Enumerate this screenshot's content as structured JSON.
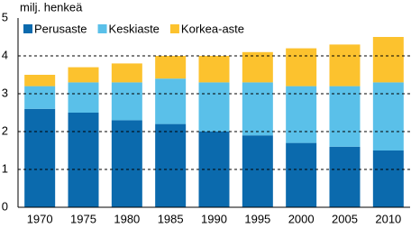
{
  "chart_data": {
    "type": "stacked-bar",
    "y_label": "milj. henkeä",
    "categories": [
      "1970",
      "1975",
      "1980",
      "1985",
      "1990",
      "1995",
      "2000",
      "2005",
      "2010"
    ],
    "series": [
      {
        "name": "Perusaste",
        "color": "#0b6aad",
        "values": [
          2.6,
          2.5,
          2.3,
          2.2,
          2.0,
          1.9,
          1.7,
          1.6,
          1.5
        ]
      },
      {
        "name": "Keskiaste",
        "color": "#5ac0e9",
        "values": [
          0.6,
          0.8,
          1.0,
          1.2,
          1.3,
          1.4,
          1.5,
          1.6,
          1.8
        ]
      },
      {
        "name": "Korkea-aste",
        "color": "#fcc22e",
        "values": [
          0.3,
          0.4,
          0.5,
          0.6,
          0.7,
          0.8,
          1.0,
          1.1,
          1.2
        ]
      }
    ],
    "ylim": [
      0,
      5
    ],
    "yticks": [
      0,
      1,
      2,
      3,
      4,
      5
    ],
    "grid": true,
    "legend": "top-left"
  }
}
